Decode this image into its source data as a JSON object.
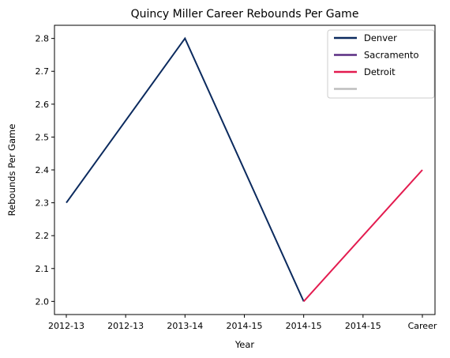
{
  "chart_data": {
    "type": "line",
    "title": "Quincy Miller Career Rebounds Per Game",
    "xlabel": "Year",
    "ylabel": "Rebounds Per Game",
    "categories": [
      "2012-13",
      "2012-13",
      "2013-14",
      "2014-15",
      "2014-15",
      "2014-15",
      "Career"
    ],
    "yticks": [
      "2.0",
      "2.1",
      "2.2",
      "2.3",
      "2.4",
      "2.5",
      "2.6",
      "2.7",
      "2.8"
    ],
    "ylim": [
      1.96,
      2.84
    ],
    "grid": false,
    "legend_position": "top-right",
    "series": [
      {
        "name": "Denver",
        "color": "#0b2a5e",
        "points": [
          [
            0,
            2.3
          ],
          [
            2,
            2.8
          ],
          [
            4,
            2.0
          ]
        ]
      },
      {
        "name": "Sacramento",
        "color": "#5a2d82",
        "points": []
      },
      {
        "name": "Detroit",
        "color": "#e31b4f",
        "points": [
          [
            4,
            2.0
          ],
          [
            6,
            2.4
          ]
        ]
      },
      {
        "name": "",
        "color": "#bdbdbd",
        "points": []
      }
    ]
  }
}
